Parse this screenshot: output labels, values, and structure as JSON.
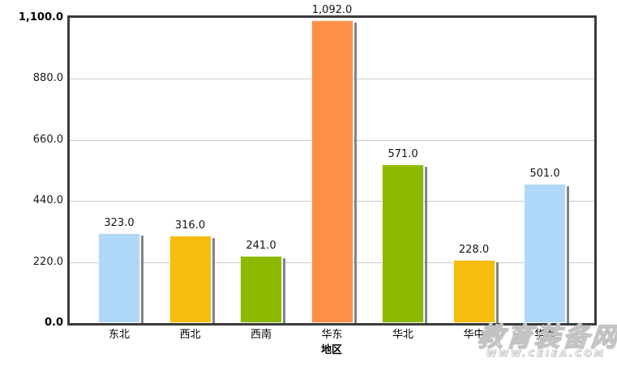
{
  "chart_data": {
    "type": "bar",
    "title": "",
    "xlabel": "地区",
    "ylabel": "",
    "categories": [
      "东北",
      "西北",
      "西南",
      "华东",
      "华北",
      "华中",
      "华南"
    ],
    "values": [
      323.0,
      316.0,
      241.0,
      1092.0,
      571.0,
      228.0,
      501.0
    ],
    "value_labels": [
      "323.0",
      "316.0",
      "241.0",
      "1,092.0",
      "571.0",
      "228.0",
      "501.0"
    ],
    "bar_colors": [
      "#AFD8F8",
      "#F6BD0F",
      "#8BBA00",
      "#FF8E46",
      "#8BBA00",
      "#F6BD0F",
      "#AFD8F8"
    ],
    "ylim": [
      0,
      1100
    ],
    "yticks": [
      0,
      220,
      440,
      660,
      880,
      1100
    ],
    "ytick_labels": [
      "0.0",
      "220.0",
      "440.0",
      "660.0",
      "880.0",
      "1,100.0"
    ],
    "grid": true,
    "legend": false
  },
  "colors": {
    "frame": "#3a3a3a",
    "gridline": "#c9c9c9",
    "background": "#ffffff",
    "bar_shadow": "#82828a",
    "text": "#141414"
  },
  "watermark": {
    "site_name": "教育装备网",
    "site_url": "WWW.CEIEA.COM"
  }
}
